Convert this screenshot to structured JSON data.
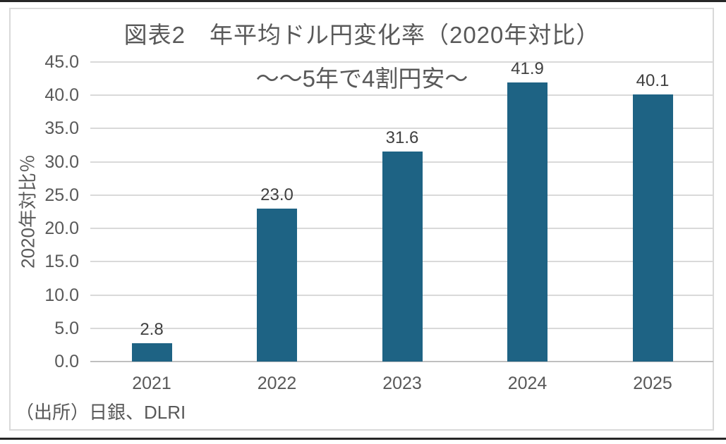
{
  "chart_data": {
    "type": "bar",
    "title": "図表2　年平均ドル円変化率（2020年対比）",
    "subtitle": "～～5年で4割円安～",
    "ylabel": "2020年対比％",
    "xlabel": "",
    "categories": [
      "2021",
      "2022",
      "2023",
      "2024",
      "2025"
    ],
    "values": [
      2.8,
      23.0,
      31.6,
      41.9,
      40.1
    ],
    "value_labels": [
      "2.8",
      "23.0",
      "31.6",
      "41.9",
      "40.1"
    ],
    "ylim": [
      0,
      45
    ],
    "ytick_step": 5,
    "ytick_labels": [
      "0.0",
      "5.0",
      "10.0",
      "15.0",
      "20.0",
      "25.0",
      "30.0",
      "35.0",
      "40.0",
      "45.0"
    ],
    "grid": true,
    "legend": "none",
    "source": "（出所）日銀、DLRI",
    "colors": {
      "bar": "#1E6384",
      "grid": "#D9D9D9",
      "axis_line": "#BFBFBF",
      "text": "#595959",
      "value_label": "#404040",
      "frame_border": "#D9D9D9",
      "rule": "#262626",
      "background": "#FFFFFF"
    }
  }
}
